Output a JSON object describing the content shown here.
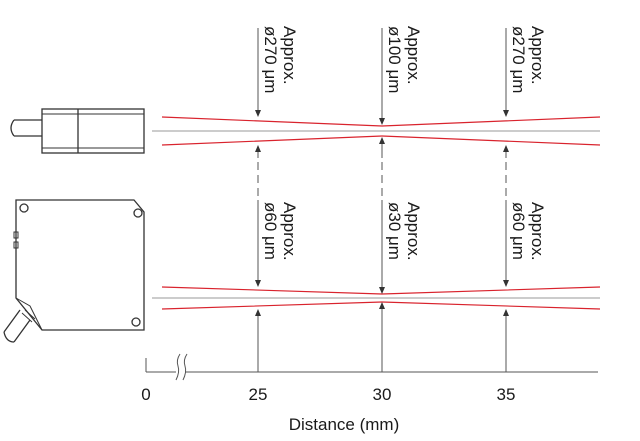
{
  "axis": {
    "title": "Distance (mm)",
    "ticks": [
      "0",
      "25",
      "30",
      "35"
    ],
    "unit": "mm"
  },
  "top_sensor": {
    "beam_labels": [
      {
        "line1": "Approx.",
        "line2": "ø270 μm"
      },
      {
        "line1": "Approx.",
        "line2": "ø100 μm"
      },
      {
        "line1": "Approx.",
        "line2": "ø270 μm"
      }
    ]
  },
  "bottom_sensor": {
    "beam_labels": [
      {
        "line1": "Approx.",
        "line2": "ø60 μm"
      },
      {
        "line1": "Approx.",
        "line2": "ø30 μm"
      },
      {
        "line1": "Approx.",
        "line2": "ø60 μm"
      }
    ]
  },
  "colors": {
    "beam": "#d9232d",
    "line": "#555555",
    "axis_center": "#999999",
    "sensor_stroke": "#333333"
  }
}
